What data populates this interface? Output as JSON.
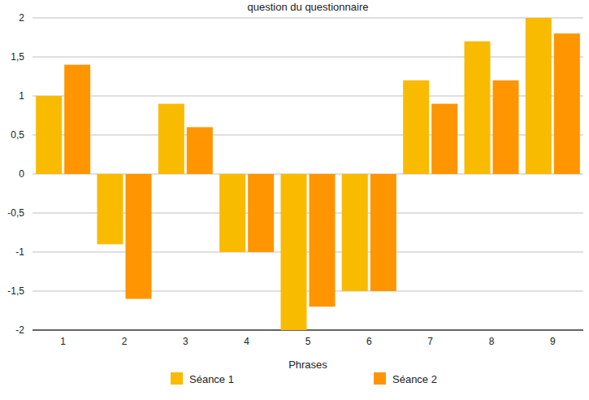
{
  "chart_data": {
    "type": "bar",
    "title": "question du questionnaire",
    "x_label": "Phrases",
    "categories": [
      "1",
      "2",
      "3",
      "4",
      "5",
      "6",
      "7",
      "8",
      "9"
    ],
    "series": [
      {
        "name": "Séance 1",
        "color": "#f9bb00",
        "values": [
          1,
          -0.9,
          0.9,
          -1,
          -2,
          -1.5,
          1.2,
          1.7,
          2
        ]
      },
      {
        "name": "Séance 2",
        "color": "#ff9500",
        "values": [
          1.4,
          -1.6,
          0.6,
          -1,
          -1.7,
          -1.5,
          0.9,
          1.2,
          1.8
        ]
      }
    ],
    "ylim": [
      -2,
      2
    ],
    "yticks": [
      -2,
      {
        "value": -1.5,
        "label": "-1,5"
      },
      -1,
      {
        "value": -0.5,
        "label": "-0,5"
      },
      0,
      {
        "value": 0.5,
        "label": "0,5"
      },
      1,
      {
        "value": 1.5,
        "label": "1,5"
      },
      2
    ],
    "grid": true,
    "legend": "bottom"
  }
}
